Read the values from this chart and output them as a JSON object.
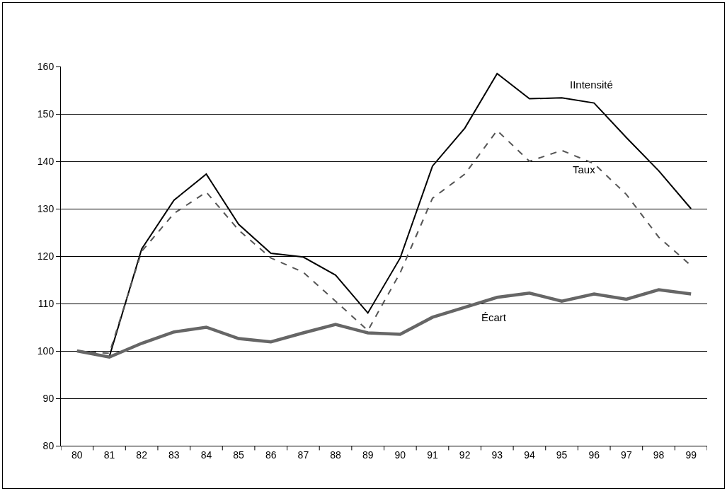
{
  "chart_data": {
    "type": "line",
    "categories": [
      "80",
      "81",
      "82",
      "83",
      "84",
      "85",
      "86",
      "87",
      "88",
      "89",
      "90",
      "91",
      "92",
      "93",
      "94",
      "95",
      "96",
      "97",
      "98",
      "99"
    ],
    "ylim": [
      80,
      160
    ],
    "yticks": [
      80,
      90,
      100,
      110,
      120,
      130,
      140,
      150,
      160
    ],
    "grid": "y",
    "legend": false,
    "marker": "none",
    "series": [
      {
        "name": "IIntensité",
        "color": "#000000",
        "line_style": "solid",
        "values": [
          100,
          98.8,
          121.5,
          131.8,
          137.3,
          126.7,
          120.6,
          119.8,
          116,
          108,
          119.6,
          139,
          147,
          158.5,
          153.2,
          153.4,
          152.3,
          145,
          138,
          130
        ]
      },
      {
        "name": "Taux",
        "color": "#555555",
        "line_style": "dashed",
        "values": [
          100,
          99.5,
          121,
          129,
          133.5,
          125.5,
          119.6,
          116.6,
          110.5,
          104.3,
          116.5,
          132.2,
          137.3,
          146.5,
          140,
          142.3,
          139.5,
          133,
          124,
          118
        ]
      },
      {
        "name": "Écart",
        "color": "#666666",
        "line_style": "solid",
        "values": [
          100,
          98.7,
          101.6,
          104,
          105,
          102.6,
          101.9,
          103.8,
          105.6,
          103.8,
          103.5,
          107.1,
          109.2,
          111.3,
          112.2,
          110.5,
          112,
          110.9,
          112.9,
          112
        ]
      }
    ]
  }
}
